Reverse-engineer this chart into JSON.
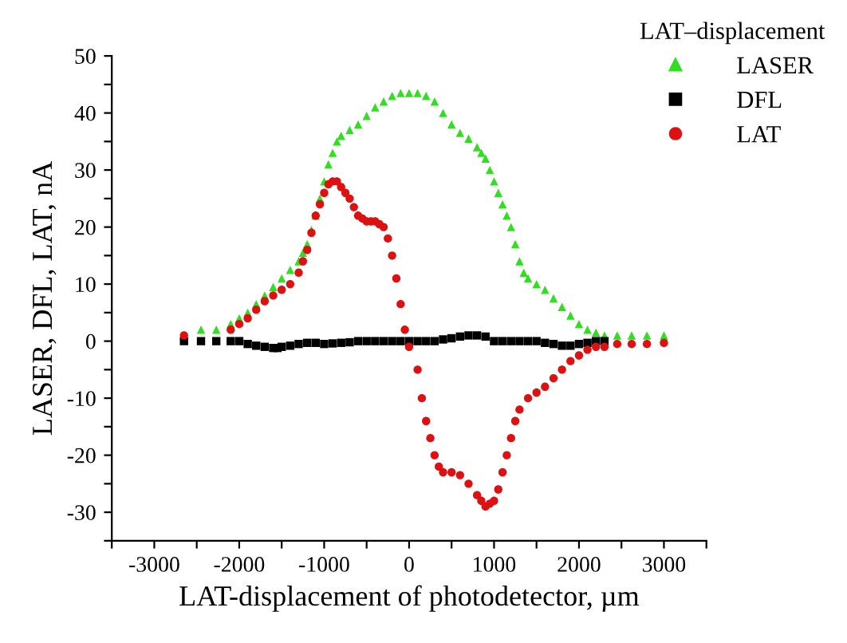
{
  "chart_data": {
    "type": "scatter",
    "xlabel": "LAT-displacement of photodetector, µm",
    "ylabel": "LASER, DFL, LAT, nA",
    "legend_title": "LAT–displacement",
    "legend": "top right",
    "grid": false,
    "xlim": [
      -3500,
      3500
    ],
    "ylim": [
      -35,
      50
    ],
    "xticks": [
      {
        "value": -3500,
        "label": null
      },
      -3000,
      {
        "value": -2500,
        "label": null
      },
      -2000,
      {
        "value": -1500,
        "label": null
      },
      -1000,
      {
        "value": -500,
        "label": null
      },
      0,
      {
        "value": 500,
        "label": null
      },
      1000,
      {
        "value": 1500,
        "label": null
      },
      2000,
      {
        "value": 2500,
        "label": null
      },
      3000,
      {
        "value": 3500,
        "label": null
      }
    ],
    "yticks": [
      {
        "value": -35,
        "label": null
      },
      -30,
      {
        "value": -25,
        "label": null
      },
      -20,
      {
        "value": -15,
        "label": null
      },
      -10,
      {
        "value": -5,
        "label": null
      },
      0,
      {
        "value": 5,
        "label": null
      },
      10,
      {
        "value": 15,
        "label": null
      },
      20,
      {
        "value": 25,
        "label": null
      },
      30,
      {
        "value": 35,
        "label": null
      },
      40,
      {
        "value": 45,
        "label": null
      },
      50
    ],
    "series": [
      {
        "name": "LASER",
        "color": "#33dd22",
        "marker": "triangle",
        "x": [
          -2450,
          -2270,
          -2100,
          -2000,
          -1900,
          -1800,
          -1700,
          -1600,
          -1500,
          -1400,
          -1300,
          -1250,
          -1200,
          -1150,
          -1100,
          -1050,
          -1000,
          -950,
          -900,
          -850,
          -800,
          -700,
          -600,
          -500,
          -400,
          -300,
          -200,
          -100,
          0,
          100,
          200,
          300,
          400,
          500,
          600,
          700,
          800,
          850,
          900,
          950,
          1000,
          1050,
          1100,
          1150,
          1200,
          1250,
          1300,
          1350,
          1400,
          1500,
          1600,
          1700,
          1800,
          1900,
          2000,
          2100,
          2200,
          2300,
          2450,
          2620,
          2800,
          3000
        ],
        "values": [
          2,
          2,
          3,
          4,
          5,
          6.5,
          8,
          9.5,
          11,
          12.5,
          14,
          15.5,
          17,
          19.5,
          22,
          25,
          28,
          31,
          33,
          35,
          36,
          37,
          38,
          39.5,
          41,
          42,
          43,
          43.5,
          43.5,
          43.5,
          43,
          42,
          40,
          38,
          36.5,
          35.5,
          34,
          33,
          32,
          30,
          28,
          26,
          24,
          22,
          20,
          17,
          14,
          12,
          11,
          10,
          9,
          7.5,
          6,
          4.5,
          3,
          2,
          1.5,
          1,
          1,
          1,
          1,
          1
        ]
      },
      {
        "name": "DFL",
        "color": "#000000",
        "marker": "square",
        "x": [
          -2650,
          -2450,
          -2270,
          -2100,
          -2000,
          -1900,
          -1800,
          -1700,
          -1600,
          -1550,
          -1500,
          -1400,
          -1300,
          -1200,
          -1100,
          -1000,
          -900,
          -800,
          -700,
          -600,
          -500,
          -400,
          -300,
          -200,
          -100,
          0,
          100,
          200,
          300,
          400,
          500,
          600,
          700,
          800,
          900,
          1000,
          1100,
          1200,
          1300,
          1400,
          1500,
          1600,
          1700,
          1800,
          1900,
          2000,
          2100,
          2200,
          2300
        ],
        "values": [
          0,
          0,
          0,
          0,
          0,
          -0.5,
          -0.8,
          -1,
          -1.2,
          -1.2,
          -1,
          -0.8,
          -0.5,
          -0.3,
          -0.3,
          -0.5,
          -0.4,
          -0.3,
          -0.2,
          0,
          0,
          0,
          0,
          0,
          0,
          0,
          0,
          0,
          0,
          0.3,
          0.5,
          0.8,
          1,
          1,
          0.8,
          0,
          0,
          0,
          0,
          0,
          0,
          -0.3,
          -0.5,
          -0.8,
          -0.8,
          -0.5,
          -0.3,
          0,
          0
        ]
      },
      {
        "name": "LAT",
        "color": "#dd1111",
        "marker": "circle",
        "x": [
          -2650,
          -2100,
          -2000,
          -1900,
          -1800,
          -1700,
          -1600,
          -1500,
          -1400,
          -1300,
          -1250,
          -1200,
          -1150,
          -1100,
          -1050,
          -1000,
          -950,
          -900,
          -850,
          -800,
          -750,
          -700,
          -650,
          -600,
          -550,
          -500,
          -450,
          -400,
          -350,
          -300,
          -250,
          -200,
          -150,
          -100,
          -50,
          0,
          100,
          150,
          200,
          250,
          300,
          350,
          400,
          500,
          600,
          700,
          800,
          850,
          900,
          950,
          1000,
          1050,
          1100,
          1150,
          1200,
          1250,
          1300,
          1400,
          1500,
          1600,
          1700,
          1800,
          1900,
          2000,
          2100,
          2200,
          2300,
          2450,
          2620,
          2800,
          3000
        ],
        "values": [
          1,
          2,
          3,
          4,
          5.5,
          7,
          8,
          9,
          10,
          12,
          14,
          16,
          19,
          22,
          24,
          26,
          27.5,
          28,
          28,
          27,
          26,
          25,
          23.5,
          22,
          21.5,
          21,
          21,
          21,
          20.5,
          20,
          18,
          15,
          11,
          6.5,
          2,
          -1,
          -5,
          -10,
          -14,
          -17,
          -20,
          -22,
          -23,
          -23,
          -23.5,
          -25,
          -27,
          -28,
          -29,
          -28.5,
          -28,
          -26,
          -23,
          -20,
          -17,
          -14,
          -12,
          -10,
          -9,
          -8,
          -6.5,
          -5,
          -3.5,
          -2.5,
          -1.5,
          -1,
          -1,
          -0.5,
          -0.5,
          -0.5,
          -0.3
        ]
      }
    ]
  }
}
